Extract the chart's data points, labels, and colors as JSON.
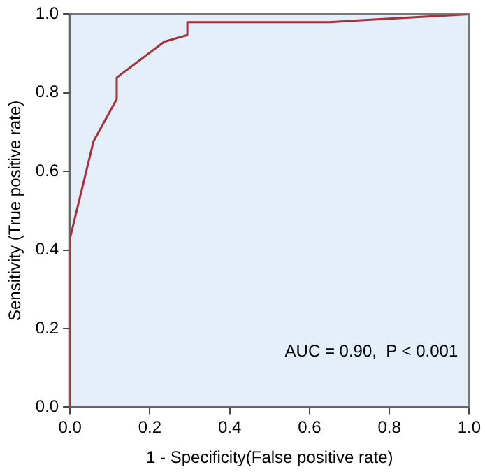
{
  "chart_data": {
    "type": "line",
    "xlabel": "1 - Specificity(False positive rate)",
    "ylabel": "Sensitivity (True positive rate)",
    "x": [
      0,
      0,
      0.059,
      0.117,
      0.117,
      0.236,
      0.294,
      0.294,
      0.649,
      1
    ],
    "series": [
      {
        "color": "#a8303a",
        "values": [
          0,
          0.43,
          0.677,
          0.784,
          0.839,
          0.93,
          0.947,
          0.98,
          0.98,
          1
        ]
      }
    ],
    "xlim": [
      0,
      1
    ],
    "ylim": [
      0,
      1
    ],
    "xticks": [
      {
        "value": 0,
        "label": "0.0"
      },
      0.2,
      0.4,
      0.6,
      0.8,
      {
        "value": 1,
        "label": "1.0"
      }
    ],
    "yticks": [
      {
        "value": 0,
        "label": "0.0"
      },
      0.2,
      0.4,
      0.6,
      0.8,
      {
        "value": 1,
        "label": "1.0"
      }
    ],
    "annotations": [
      "AUC = 0.90,  P < 0.001"
    ],
    "grid": false,
    "legend": false,
    "marker": "none",
    "line_style": "solid"
  }
}
